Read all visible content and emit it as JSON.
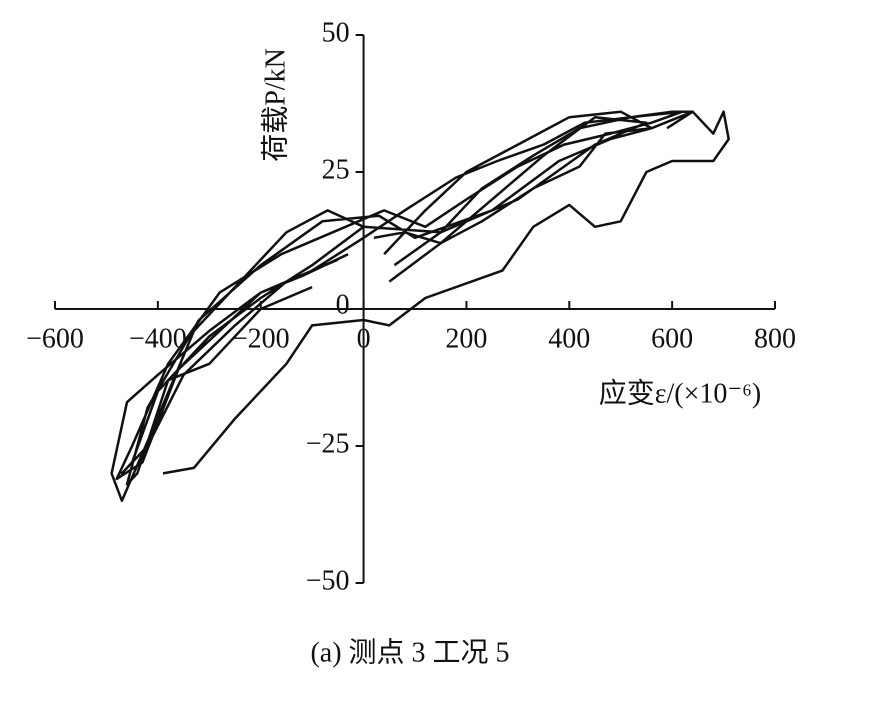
{
  "chart_data": {
    "type": "line",
    "xlabel": "应变ε/(×10⁻⁶)",
    "ylabel": "荷载P/kN",
    "caption": "(a)  测点 3 工况 5",
    "xlim": [
      -600,
      800
    ],
    "ylim": [
      -50,
      50
    ],
    "xticks": [
      {
        "value": -600,
        "label": "−600"
      },
      {
        "value": -400,
        "label": "−400"
      },
      {
        "value": -200,
        "label": "−200"
      },
      0,
      200,
      400,
      600,
      800
    ],
    "yticks": [
      {
        "value": -50,
        "label": "−50"
      },
      {
        "value": -25,
        "label": "−25"
      },
      0,
      25,
      50
    ],
    "series": [
      {
        "color": "#111111",
        "x": [
          50,
          150,
          250,
          350,
          450,
          550,
          450,
          300,
          150,
          0,
          -100,
          -200,
          -300,
          -400,
          -450,
          -470,
          -420,
          -350,
          -250,
          -150,
          -50,
          null,
          40,
          120,
          200,
          300,
          400,
          500,
          560,
          480,
          380,
          250,
          100,
          30,
          -80,
          -200,
          -320,
          -420,
          -460,
          -440,
          -380,
          -300,
          -200,
          -100,
          null,
          -390,
          -330,
          -250,
          -150,
          -100,
          0,
          50,
          120,
          270,
          330,
          400,
          450,
          500,
          550,
          600,
          680,
          710,
          700,
          680,
          640,
          590,
          null,
          0,
          -70,
          -150,
          -250,
          -330,
          -410,
          -470,
          -490,
          -460,
          -400,
          -300,
          -200,
          -100,
          0,
          80,
          180,
          260,
          350,
          430,
          520,
          600,
          640,
          560,
          470,
          420,
          330,
          230,
          150,
          80,
          20,
          null,
          60,
          150,
          230,
          330,
          420,
          520,
          620,
          560,
          480,
          390,
          300,
          200,
          120,
          40,
          -60,
          -160,
          -280,
          -380,
          -450,
          -480,
          -430,
          -360,
          -280,
          -200,
          -120,
          -30
        ],
        "y": [
          5,
          12,
          20,
          28,
          35,
          34,
          30,
          20,
          14,
          15,
          8,
          2,
          -5,
          -15,
          -28,
          -30,
          -25,
          -12,
          -3,
          5,
          9,
          null,
          10,
          18,
          25,
          30,
          35,
          36,
          33,
          31,
          27,
          18,
          13,
          17,
          16,
          8,
          -2,
          -18,
          -32,
          -30,
          -13,
          -10,
          0,
          4,
          null,
          -30,
          -29,
          -20,
          -10,
          -3,
          -2,
          -3,
          2,
          7,
          15,
          19,
          15,
          16,
          25,
          27,
          27,
          31,
          36,
          32,
          36,
          33,
          null,
          15,
          18,
          14,
          4,
          -4,
          -22,
          -35,
          -30,
          -17,
          -12,
          -4,
          3,
          7,
          13,
          18,
          24,
          27,
          30,
          34,
          35,
          36,
          36,
          33,
          32,
          26,
          22,
          16,
          12,
          14,
          13,
          null,
          8,
          14,
          22,
          28,
          33,
          35,
          36,
          34,
          32,
          30,
          26,
          20,
          15,
          18,
          14,
          10,
          3,
          -10,
          -25,
          -31,
          -28,
          -11,
          -4,
          3,
          6,
          10
        ]
      }
    ]
  }
}
